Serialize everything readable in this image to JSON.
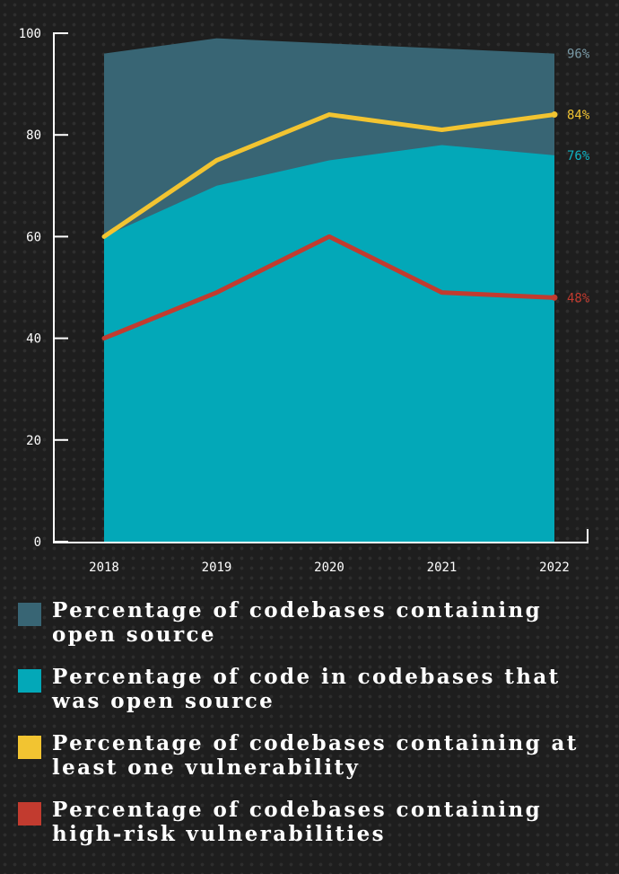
{
  "colors": {
    "axis": "#ffffff",
    "open_source_codebases": "#386574",
    "open_source_code": "#03a8b8",
    "any_vulnerability": "#f2c431",
    "high_risk": "#c23b2f"
  },
  "chart_data": {
    "type": "area",
    "categories": [
      "2018",
      "2019",
      "2020",
      "2021",
      "2022"
    ],
    "ylim": [
      0,
      100
    ],
    "yticks": [
      0,
      20,
      40,
      60,
      80,
      100
    ],
    "series": [
      {
        "name": "Percentage of codebases containing open source",
        "type": "area",
        "color_key": "open_source_codebases",
        "values": [
          96,
          99,
          98,
          97,
          96
        ],
        "end_label": "96%"
      },
      {
        "name": "Percentage of code in codebases that was open source",
        "type": "area",
        "color_key": "open_source_code",
        "values": [
          60,
          70,
          75,
          78,
          76
        ],
        "end_label": "76%"
      },
      {
        "name": "Percentage of codebases containing at least one vulnerability",
        "type": "line",
        "color_key": "any_vulnerability",
        "values": [
          60,
          75,
          84,
          81,
          84
        ],
        "end_label": "84%"
      },
      {
        "name": "Percentage of codebases containing high-risk vulnerabilities",
        "type": "line",
        "color_key": "high_risk",
        "values": [
          40,
          49,
          60,
          49,
          48
        ],
        "end_label": "48%"
      }
    ]
  }
}
